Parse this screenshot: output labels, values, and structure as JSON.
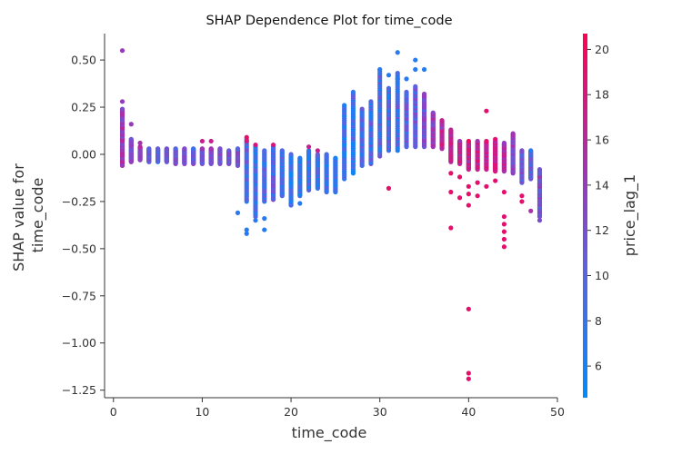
{
  "chart_data": {
    "type": "scatter",
    "title": "SHAP Dependence Plot for time_code",
    "xlabel": "time_code",
    "ylabel": "SHAP value for\ntime_code",
    "xlim": [
      -1,
      50
    ],
    "ylim": [
      -1.29,
      0.64
    ],
    "x_ticks": [
      0,
      10,
      20,
      30,
      40,
      50
    ],
    "y_ticks": [
      0.5,
      0.25,
      0.0,
      -0.25,
      -0.5,
      -0.75,
      -1.0,
      -1.25
    ],
    "colorbar": {
      "label": "price_lag_1",
      "range": [
        4.6,
        20.7
      ],
      "ticks": [
        6,
        8,
        10,
        12,
        14,
        16,
        18,
        20
      ],
      "low_color": "#008bfb",
      "high_color": "#ff0052"
    },
    "grid": false,
    "bands": [
      {
        "x": 1,
        "min": -0.06,
        "max": 0.24,
        "c": 14
      },
      {
        "x": 2,
        "min": -0.04,
        "max": 0.08,
        "c": 13
      },
      {
        "x": 3,
        "min": -0.03,
        "max": 0.04,
        "c": 13
      },
      {
        "x": 4,
        "min": -0.04,
        "max": 0.03,
        "c": 11
      },
      {
        "x": 5,
        "min": -0.04,
        "max": 0.03,
        "c": 10
      },
      {
        "x": 6,
        "min": -0.04,
        "max": 0.03,
        "c": 11
      },
      {
        "x": 7,
        "min": -0.05,
        "max": 0.03,
        "c": 12
      },
      {
        "x": 8,
        "min": -0.05,
        "max": 0.03,
        "c": 12
      },
      {
        "x": 9,
        "min": -0.05,
        "max": 0.03,
        "c": 11
      },
      {
        "x": 10,
        "min": -0.05,
        "max": 0.03,
        "c": 12
      },
      {
        "x": 11,
        "min": -0.05,
        "max": 0.03,
        "c": 12
      },
      {
        "x": 12,
        "min": -0.05,
        "max": 0.03,
        "c": 12
      },
      {
        "x": 13,
        "min": -0.05,
        "max": 0.02,
        "c": 12
      },
      {
        "x": 14,
        "min": -0.06,
        "max": 0.03,
        "c": 12
      },
      {
        "x": 15,
        "min": -0.25,
        "max": 0.08,
        "c": 9
      },
      {
        "x": 16,
        "min": -0.33,
        "max": 0.04,
        "c": 8
      },
      {
        "x": 17,
        "min": -0.25,
        "max": 0.02,
        "c": 9
      },
      {
        "x": 18,
        "min": -0.24,
        "max": 0.04,
        "c": 10
      },
      {
        "x": 19,
        "min": -0.22,
        "max": 0.02,
        "c": 9
      },
      {
        "x": 20,
        "min": -0.27,
        "max": 0.0,
        "c": 8
      },
      {
        "x": 21,
        "min": -0.22,
        "max": -0.02,
        "c": 8
      },
      {
        "x": 22,
        "min": -0.19,
        "max": 0.02,
        "c": 8
      },
      {
        "x": 23,
        "min": -0.18,
        "max": 0.0,
        "c": 8
      },
      {
        "x": 24,
        "min": -0.2,
        "max": 0.0,
        "c": 8
      },
      {
        "x": 25,
        "min": -0.2,
        "max": -0.02,
        "c": 8
      },
      {
        "x": 26,
        "min": -0.13,
        "max": 0.26,
        "c": 8
      },
      {
        "x": 27,
        "min": -0.1,
        "max": 0.33,
        "c": 8
      },
      {
        "x": 28,
        "min": -0.06,
        "max": 0.24,
        "c": 9
      },
      {
        "x": 29,
        "min": -0.05,
        "max": 0.28,
        "c": 9
      },
      {
        "x": 30,
        "min": -0.01,
        "max": 0.44,
        "c": 9
      },
      {
        "x": 31,
        "min": 0.02,
        "max": 0.35,
        "c": 9
      },
      {
        "x": 32,
        "min": 0.02,
        "max": 0.43,
        "c": 9
      },
      {
        "x": 33,
        "min": 0.04,
        "max": 0.33,
        "c": 10
      },
      {
        "x": 34,
        "min": 0.04,
        "max": 0.36,
        "c": 11
      },
      {
        "x": 35,
        "min": 0.04,
        "max": 0.32,
        "c": 12
      },
      {
        "x": 36,
        "min": 0.04,
        "max": 0.22,
        "c": 14
      },
      {
        "x": 37,
        "min": 0.03,
        "max": 0.18,
        "c": 16
      },
      {
        "x": 38,
        "min": -0.04,
        "max": 0.13,
        "c": 17
      },
      {
        "x": 39,
        "min": -0.05,
        "max": 0.07,
        "c": 17
      },
      {
        "x": 40,
        "min": -0.08,
        "max": 0.07,
        "c": 17
      },
      {
        "x": 41,
        "min": -0.08,
        "max": 0.07,
        "c": 17
      },
      {
        "x": 42,
        "min": -0.08,
        "max": 0.07,
        "c": 17
      },
      {
        "x": 43,
        "min": -0.09,
        "max": 0.07,
        "c": 17
      },
      {
        "x": 44,
        "min": -0.09,
        "max": 0.06,
        "c": 16
      },
      {
        "x": 45,
        "min": -0.1,
        "max": 0.11,
        "c": 13
      },
      {
        "x": 46,
        "min": -0.15,
        "max": 0.02,
        "c": 11
      },
      {
        "x": 47,
        "min": -0.13,
        "max": 0.02,
        "c": 10
      },
      {
        "x": 48,
        "min": -0.33,
        "max": -0.08,
        "c": 12
      }
    ],
    "outliers": [
      {
        "x": 1,
        "y": 0.55,
        "c": 14
      },
      {
        "x": 1,
        "y": 0.28,
        "c": 14
      },
      {
        "x": 2,
        "y": 0.16,
        "c": 14
      },
      {
        "x": 3,
        "y": 0.06,
        "c": 15
      },
      {
        "x": 11,
        "y": 0.07,
        "c": 17
      },
      {
        "x": 10,
        "y": 0.07,
        "c": 17
      },
      {
        "x": 15,
        "y": 0.09,
        "c": 19
      },
      {
        "x": 15,
        "y": 0.07,
        "c": 18
      },
      {
        "x": 16,
        "y": 0.05,
        "c": 18
      },
      {
        "x": 14,
        "y": -0.31,
        "c": 7
      },
      {
        "x": 15,
        "y": -0.42,
        "c": 7
      },
      {
        "x": 15,
        "y": -0.4,
        "c": 7
      },
      {
        "x": 16,
        "y": -0.35,
        "c": 7
      },
      {
        "x": 17,
        "y": -0.34,
        "c": 7
      },
      {
        "x": 17,
        "y": -0.4,
        "c": 7
      },
      {
        "x": 18,
        "y": 0.05,
        "c": 18
      },
      {
        "x": 21,
        "y": -0.26,
        "c": 7
      },
      {
        "x": 22,
        "y": 0.04,
        "c": 17
      },
      {
        "x": 23,
        "y": 0.02,
        "c": 17
      },
      {
        "x": 30,
        "y": 0.45,
        "c": 7
      },
      {
        "x": 31,
        "y": 0.42,
        "c": 7
      },
      {
        "x": 31,
        "y": -0.18,
        "c": 19
      },
      {
        "x": 32,
        "y": 0.54,
        "c": 7
      },
      {
        "x": 32,
        "y": 0.4,
        "c": 7
      },
      {
        "x": 33,
        "y": 0.4,
        "c": 7
      },
      {
        "x": 34,
        "y": 0.5,
        "c": 7
      },
      {
        "x": 34,
        "y": 0.45,
        "c": 7
      },
      {
        "x": 35,
        "y": 0.45,
        "c": 7
      },
      {
        "x": 38,
        "y": -0.39,
        "c": 19
      },
      {
        "x": 38,
        "y": -0.2,
        "c": 19
      },
      {
        "x": 38,
        "y": -0.1,
        "c": 19
      },
      {
        "x": 39,
        "y": -0.23,
        "c": 19
      },
      {
        "x": 39,
        "y": -0.12,
        "c": 19
      },
      {
        "x": 40,
        "y": -0.82,
        "c": 19
      },
      {
        "x": 40,
        "y": -1.16,
        "c": 19
      },
      {
        "x": 40,
        "y": -1.19,
        "c": 19
      },
      {
        "x": 40,
        "y": -0.27,
        "c": 19
      },
      {
        "x": 40,
        "y": -0.21,
        "c": 19
      },
      {
        "x": 40,
        "y": -0.17,
        "c": 19
      },
      {
        "x": 41,
        "y": -0.22,
        "c": 19
      },
      {
        "x": 41,
        "y": -0.15,
        "c": 19
      },
      {
        "x": 42,
        "y": 0.23,
        "c": 19
      },
      {
        "x": 42,
        "y": -0.17,
        "c": 19
      },
      {
        "x": 43,
        "y": -0.14,
        "c": 19
      },
      {
        "x": 43,
        "y": 0.08,
        "c": 19
      },
      {
        "x": 44,
        "y": -0.33,
        "c": 19
      },
      {
        "x": 44,
        "y": -0.37,
        "c": 19
      },
      {
        "x": 44,
        "y": -0.41,
        "c": 19
      },
      {
        "x": 44,
        "y": -0.45,
        "c": 19
      },
      {
        "x": 44,
        "y": -0.49,
        "c": 19
      },
      {
        "x": 44,
        "y": -0.2,
        "c": 19
      },
      {
        "x": 46,
        "y": -0.22,
        "c": 19
      },
      {
        "x": 46,
        "y": -0.25,
        "c": 19
      },
      {
        "x": 47,
        "y": -0.3,
        "c": 15
      },
      {
        "x": 48,
        "y": -0.35,
        "c": 12
      }
    ]
  }
}
